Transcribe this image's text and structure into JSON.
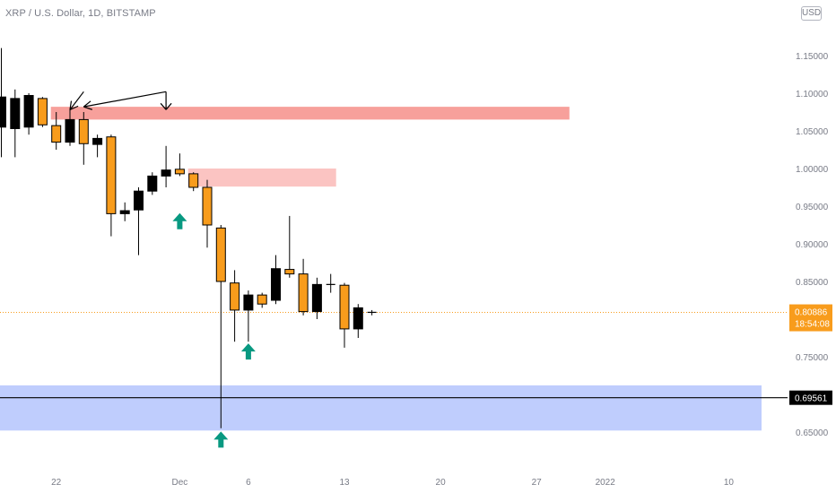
{
  "header": {
    "symbol_title": "XRP / U.S. Dollar, 1D, BITSTAMP",
    "currency": "USD"
  },
  "chart_data": {
    "type": "candlestick",
    "title": "XRP / U.S. Dollar, 1D, BITSTAMP",
    "y_axis": {
      "range": [
        0.625,
        1.2
      ],
      "ticks": [
        "1.15000",
        "1.10000",
        "1.05000",
        "1.00000",
        "0.95000",
        "0.90000",
        "0.85000",
        "0.80000",
        "0.75000",
        "0.70000",
        "0.65000"
      ]
    },
    "x_axis": {
      "range_days": [
        "2021-11-18",
        "2022-01-12"
      ],
      "ticks": [
        {
          "label": "22",
          "date": "2021-11-22"
        },
        {
          "label": "Dec",
          "date": "2021-12-01"
        },
        {
          "label": "6",
          "date": "2021-12-06"
        },
        {
          "label": "13",
          "date": "2021-12-13"
        },
        {
          "label": "20",
          "date": "2021-12-20"
        },
        {
          "label": "27",
          "date": "2021-12-27"
        },
        {
          "label": "2022",
          "date": "2022-01-01"
        },
        {
          "label": "10",
          "date": "2022-01-10"
        }
      ]
    },
    "candles": [
      {
        "date": "2021-11-18",
        "open": 1.055,
        "high": 1.16,
        "low": 1.015,
        "close": 1.095
      },
      {
        "date": "2021-11-19",
        "open": 1.053,
        "high": 1.105,
        "low": 1.015,
        "close": 1.093
      },
      {
        "date": "2021-11-20",
        "open": 1.055,
        "high": 1.1,
        "low": 1.045,
        "close": 1.097
      },
      {
        "date": "2021-11-21",
        "open": 1.093,
        "high": 1.095,
        "low": 1.055,
        "close": 1.058
      },
      {
        "date": "2021-11-22",
        "open": 1.057,
        "high": 1.075,
        "low": 1.025,
        "close": 1.035
      },
      {
        "date": "2021-11-23",
        "open": 1.035,
        "high": 1.08,
        "low": 1.03,
        "close": 1.065
      },
      {
        "date": "2021-11-24",
        "open": 1.065,
        "high": 1.075,
        "low": 1.005,
        "close": 1.033
      },
      {
        "date": "2021-11-25",
        "open": 1.032,
        "high": 1.045,
        "low": 1.015,
        "close": 1.04
      },
      {
        "date": "2021-11-26",
        "open": 1.042,
        "high": 1.045,
        "low": 0.91,
        "close": 0.94
      },
      {
        "date": "2021-11-27",
        "open": 0.94,
        "high": 0.955,
        "low": 0.93,
        "close": 0.944
      },
      {
        "date": "2021-11-28",
        "open": 0.945,
        "high": 0.975,
        "low": 0.885,
        "close": 0.97
      },
      {
        "date": "2021-11-29",
        "open": 0.97,
        "high": 0.995,
        "low": 0.965,
        "close": 0.99
      },
      {
        "date": "2021-11-30",
        "open": 0.99,
        "high": 1.03,
        "low": 0.975,
        "close": 0.998
      },
      {
        "date": "2021-12-01",
        "open": 0.999,
        "high": 1.02,
        "low": 0.99,
        "close": 0.993
      },
      {
        "date": "2021-12-02",
        "open": 0.993,
        "high": 0.995,
        "low": 0.97,
        "close": 0.975
      },
      {
        "date": "2021-12-03",
        "open": 0.975,
        "high": 0.985,
        "low": 0.895,
        "close": 0.925
      },
      {
        "date": "2021-12-04",
        "open": 0.921,
        "high": 0.925,
        "low": 0.655,
        "close": 0.85
      },
      {
        "date": "2021-12-05",
        "open": 0.848,
        "high": 0.865,
        "low": 0.77,
        "close": 0.812
      },
      {
        "date": "2021-12-06",
        "open": 0.812,
        "high": 0.838,
        "low": 0.77,
        "close": 0.832
      },
      {
        "date": "2021-12-07",
        "open": 0.832,
        "high": 0.835,
        "low": 0.815,
        "close": 0.82
      },
      {
        "date": "2021-12-08",
        "open": 0.825,
        "high": 0.885,
        "low": 0.82,
        "close": 0.867
      },
      {
        "date": "2021-12-09",
        "open": 0.866,
        "high": 0.937,
        "low": 0.855,
        "close": 0.86
      },
      {
        "date": "2021-12-10",
        "open": 0.86,
        "high": 0.88,
        "low": 0.805,
        "close": 0.81
      },
      {
        "date": "2021-12-11",
        "open": 0.81,
        "high": 0.855,
        "low": 0.8,
        "close": 0.846
      },
      {
        "date": "2021-12-12",
        "open": 0.846,
        "high": 0.86,
        "low": 0.835,
        "close": 0.845
      },
      {
        "date": "2021-12-13",
        "open": 0.845,
        "high": 0.848,
        "low": 0.762,
        "close": 0.787
      },
      {
        "date": "2021-12-14",
        "open": 0.787,
        "high": 0.82,
        "low": 0.775,
        "close": 0.815
      },
      {
        "date": "2021-12-15",
        "open": 0.808,
        "high": 0.812,
        "low": 0.805,
        "close": 0.809
      }
    ],
    "zones": [
      {
        "price_from": 1.065,
        "price_to": 1.082,
        "date_from": "2021-11-22",
        "date_to": "2021-12-29",
        "color": "#f7a09b"
      },
      {
        "price_from": 0.976,
        "price_to": 1.0,
        "date_from": "2021-12-02",
        "date_to": "2021-12-12",
        "color": "#fbc4c2"
      },
      {
        "price_from": 0.652,
        "price_to": 0.712,
        "date_from": "2021-11-18",
        "date_to": "2022-01-12",
        "color": "#bfcdfd"
      }
    ],
    "signal_arrows": [
      {
        "date": "2021-12-01",
        "price": 0.93
      },
      {
        "date": "2021-12-06",
        "price": 0.757
      },
      {
        "date": "2021-12-04",
        "price": 0.64
      }
    ],
    "hand_drawn_arrows": [
      {
        "from": {
          "date": "2021-11-23",
          "price": 1.078
        },
        "to": {
          "date": "2021-11-24",
          "price": 1.102
        }
      },
      {
        "from": {
          "date": "2021-11-24",
          "price": 1.082
        },
        "to": {
          "date": "2021-11-30",
          "price": 1.102
        }
      }
    ],
    "horizontal_line": {
      "price": 0.69561,
      "label": "0.69561",
      "color": "#000000"
    },
    "last_price": {
      "label": "0.80886",
      "countdown": "18:54:08",
      "price": 0.80886,
      "color": "#f89c1c"
    },
    "colors": {
      "up_body": "#000000",
      "down_body": "#f89c1c",
      "wick": "#000000",
      "arrow_teal": "#089981",
      "axis_text": "#787b86"
    }
  }
}
